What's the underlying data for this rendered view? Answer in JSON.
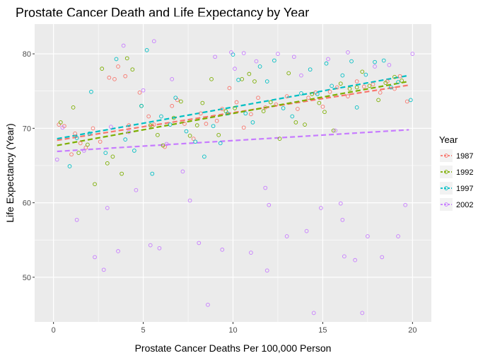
{
  "chart_data": {
    "type": "scatter",
    "title": "Prostate Cancer Death and Life Expectancy by Year",
    "xlabel": "Prostate Cancer Deaths Per 100,000 Person",
    "ylabel": "Life Expectancy (Year)",
    "xlim": [
      -1.05,
      21.05
    ],
    "ylim": [
      44.0,
      84.0
    ],
    "x_ticks": [
      0,
      5,
      10,
      15,
      20
    ],
    "y_ticks": [
      50,
      60,
      70,
      80
    ],
    "x_tick_labels": [
      "0",
      "5",
      "10",
      "15",
      "20"
    ],
    "y_tick_labels": [
      "50",
      "60",
      "70",
      "80"
    ],
    "grid": true,
    "legend": {
      "title": "Year",
      "position": "right"
    },
    "series": [
      {
        "name": "1987",
        "color": "#F8766D",
        "trend": [
          [
            0.2,
            68.4
          ],
          [
            19.8,
            75.8
          ]
        ],
        "points": [
          [
            0.3,
            70.5
          ],
          [
            0.6,
            70.3
          ],
          [
            1.0,
            66.5
          ],
          [
            1.2,
            69.3
          ],
          [
            1.5,
            68.0
          ],
          [
            1.8,
            67.4
          ],
          [
            2.2,
            70.0
          ],
          [
            2.6,
            68.2
          ],
          [
            3.1,
            76.8
          ],
          [
            3.4,
            76.6
          ],
          [
            3.6,
            78.3
          ],
          [
            4.0,
            77.0
          ],
          [
            4.2,
            70.4
          ],
          [
            4.8,
            74.8
          ],
          [
            5.3,
            71.6
          ],
          [
            5.6,
            70.5
          ],
          [
            6.2,
            67.5
          ],
          [
            6.6,
            73.0
          ],
          [
            6.9,
            73.8
          ],
          [
            7.3,
            70.6
          ],
          [
            7.8,
            68.6
          ],
          [
            8.2,
            72.0
          ],
          [
            8.5,
            70.6
          ],
          [
            9.1,
            71.0
          ],
          [
            9.4,
            72.6
          ],
          [
            9.8,
            75.4
          ],
          [
            10.2,
            73.5
          ],
          [
            10.6,
            70.1
          ],
          [
            11.0,
            71.9
          ],
          [
            11.4,
            74.1
          ],
          [
            11.8,
            72.8
          ],
          [
            12.4,
            73.2
          ],
          [
            13.0,
            74.3
          ],
          [
            13.6,
            72.6
          ],
          [
            14.2,
            74.1
          ],
          [
            14.6,
            74.8
          ],
          [
            15.0,
            72.9
          ],
          [
            15.4,
            74.9
          ],
          [
            15.8,
            75.5
          ],
          [
            16.4,
            74.3
          ],
          [
            16.9,
            76.3
          ],
          [
            17.3,
            75.6
          ],
          [
            17.8,
            75.9
          ],
          [
            18.2,
            74.8
          ],
          [
            18.6,
            76.3
          ],
          [
            19.0,
            75.3
          ],
          [
            19.3,
            77.0
          ],
          [
            19.7,
            73.6
          ]
        ]
      },
      {
        "name": "1992",
        "color": "#7CAE00",
        "trend": [
          [
            0.2,
            67.7
          ],
          [
            19.8,
            76.3
          ]
        ],
        "points": [
          [
            0.4,
            70.8
          ],
          [
            1.1,
            72.8
          ],
          [
            1.4,
            66.7
          ],
          [
            1.9,
            67.8
          ],
          [
            2.3,
            62.5
          ],
          [
            2.7,
            78.0
          ],
          [
            3.0,
            65.3
          ],
          [
            3.3,
            66.2
          ],
          [
            3.8,
            63.9
          ],
          [
            4.1,
            79.4
          ],
          [
            4.4,
            77.9
          ],
          [
            4.9,
            73.0
          ],
          [
            5.4,
            70.4
          ],
          [
            5.8,
            69.1
          ],
          [
            6.1,
            67.7
          ],
          [
            6.7,
            71.4
          ],
          [
            7.1,
            73.6
          ],
          [
            7.6,
            69.0
          ],
          [
            8.0,
            70.4
          ],
          [
            8.3,
            73.4
          ],
          [
            8.8,
            76.6
          ],
          [
            9.2,
            69.1
          ],
          [
            9.6,
            72.3
          ],
          [
            10.1,
            72.7
          ],
          [
            10.5,
            76.6
          ],
          [
            10.9,
            77.3
          ],
          [
            11.2,
            76.3
          ],
          [
            11.7,
            72.3
          ],
          [
            12.1,
            73.5
          ],
          [
            12.6,
            68.6
          ],
          [
            13.1,
            77.4
          ],
          [
            13.5,
            70.8
          ],
          [
            14.0,
            70.5
          ],
          [
            14.4,
            74.6
          ],
          [
            14.8,
            73.4
          ],
          [
            15.1,
            72.2
          ],
          [
            15.6,
            69.7
          ],
          [
            16.0,
            76.0
          ],
          [
            16.5,
            75.3
          ],
          [
            16.9,
            75.5
          ],
          [
            17.2,
            77.6
          ],
          [
            17.6,
            75.7
          ],
          [
            18.1,
            73.8
          ],
          [
            18.5,
            76.1
          ],
          [
            19.0,
            76.9
          ],
          [
            19.4,
            76.4
          ]
        ]
      },
      {
        "name": "1997",
        "color": "#00BFC4",
        "trend": [
          [
            0.2,
            68.6
          ],
          [
            19.8,
            77.1
          ]
        ],
        "points": [
          [
            0.9,
            64.9
          ],
          [
            1.3,
            68.7
          ],
          [
            2.0,
            69.3
          ],
          [
            2.1,
            74.9
          ],
          [
            2.9,
            66.7
          ],
          [
            3.5,
            79.3
          ],
          [
            4.0,
            68.5
          ],
          [
            4.5,
            67.0
          ],
          [
            4.9,
            73.0
          ],
          [
            5.2,
            80.5
          ],
          [
            5.5,
            63.9
          ],
          [
            6.0,
            71.6
          ],
          [
            6.5,
            70.5
          ],
          [
            6.8,
            74.1
          ],
          [
            7.4,
            69.6
          ],
          [
            7.9,
            68.2
          ],
          [
            8.4,
            66.2
          ],
          [
            8.9,
            70.3
          ],
          [
            9.3,
            68.0
          ],
          [
            9.7,
            72.0
          ],
          [
            10.0,
            79.9
          ],
          [
            10.3,
            76.5
          ],
          [
            10.7,
            72.0
          ],
          [
            11.1,
            70.8
          ],
          [
            11.5,
            78.3
          ],
          [
            11.9,
            76.3
          ],
          [
            12.3,
            79.1
          ],
          [
            12.8,
            72.7
          ],
          [
            13.3,
            71.6
          ],
          [
            13.8,
            74.7
          ],
          [
            14.3,
            77.9
          ],
          [
            14.7,
            74.6
          ],
          [
            15.2,
            78.7
          ],
          [
            15.5,
            75.7
          ],
          [
            16.1,
            77.1
          ],
          [
            16.6,
            79.0
          ],
          [
            16.9,
            72.8
          ],
          [
            17.4,
            77.2
          ],
          [
            17.9,
            78.9
          ],
          [
            18.4,
            79.1
          ],
          [
            18.8,
            75.5
          ],
          [
            19.2,
            76.2
          ],
          [
            19.9,
            73.8
          ]
        ]
      },
      {
        "name": "2002",
        "color": "#C77CFF",
        "trend": [
          [
            0.2,
            66.9
          ],
          [
            19.8,
            69.8
          ]
        ],
        "points": [
          [
            0.2,
            65.8
          ],
          [
            0.5,
            70.1
          ],
          [
            1.3,
            57.7
          ],
          [
            1.7,
            67.0
          ],
          [
            2.3,
            52.7
          ],
          [
            2.8,
            51.0
          ],
          [
            3.0,
            59.3
          ],
          [
            3.2,
            70.2
          ],
          [
            3.6,
            53.5
          ],
          [
            3.9,
            81.1
          ],
          [
            4.2,
            69.5
          ],
          [
            4.6,
            61.7
          ],
          [
            5.0,
            75.1
          ],
          [
            5.4,
            54.3
          ],
          [
            5.6,
            81.7
          ],
          [
            5.9,
            53.9
          ],
          [
            6.3,
            67.9
          ],
          [
            6.6,
            76.6
          ],
          [
            7.2,
            64.2
          ],
          [
            7.6,
            60.3
          ],
          [
            8.1,
            54.6
          ],
          [
            8.6,
            46.3
          ],
          [
            9.0,
            79.6
          ],
          [
            9.4,
            53.7
          ],
          [
            9.9,
            80.2
          ],
          [
            10.1,
            78.0
          ],
          [
            10.6,
            80.1
          ],
          [
            11.0,
            53.3
          ],
          [
            11.3,
            79.0
          ],
          [
            11.8,
            62.0
          ],
          [
            11.9,
            50.9
          ],
          [
            12.0,
            59.7
          ],
          [
            12.5,
            80.0
          ],
          [
            13.0,
            55.5
          ],
          [
            13.4,
            79.6
          ],
          [
            13.8,
            77.1
          ],
          [
            14.1,
            56.2
          ],
          [
            14.5,
            45.2
          ],
          [
            14.9,
            59.3
          ],
          [
            15.3,
            79.3
          ],
          [
            15.7,
            69.7
          ],
          [
            16.0,
            59.9
          ],
          [
            16.1,
            57.7
          ],
          [
            16.2,
            52.8
          ],
          [
            16.4,
            80.2
          ],
          [
            16.8,
            52.3
          ],
          [
            17.2,
            45.2
          ],
          [
            17.5,
            55.5
          ],
          [
            17.9,
            78.3
          ],
          [
            18.3,
            52.7
          ],
          [
            18.7,
            78.5
          ],
          [
            19.2,
            55.5
          ],
          [
            19.6,
            59.7
          ],
          [
            20.0,
            80.0
          ]
        ]
      }
    ]
  }
}
